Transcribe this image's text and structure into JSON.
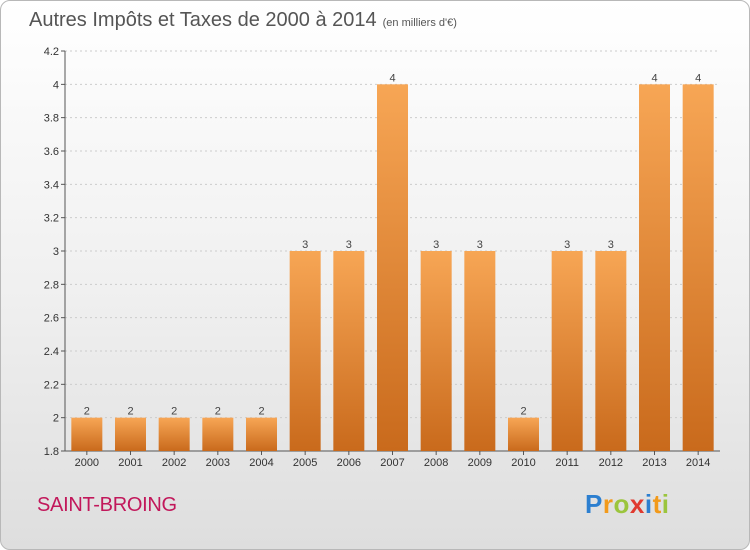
{
  "header": {
    "title": "Autres Impôts et Taxes de 2000 à 2014",
    "subtitle": "(en milliers d'€)"
  },
  "footer": {
    "commune": "SAINT-BROING",
    "logo_letters": [
      {
        "ch": "P",
        "color": "#2c7fd0"
      },
      {
        "ch": "r",
        "color": "#f29a1b"
      },
      {
        "ch": "o",
        "color": "#9bc53d"
      },
      {
        "ch": "x",
        "color": "#e03a2f"
      },
      {
        "ch": "i",
        "color": "#2c7fd0"
      },
      {
        "ch": "t",
        "color": "#f29a1b"
      },
      {
        "ch": "i",
        "color": "#9bc53d"
      }
    ]
  },
  "colors": {
    "bar_light": "#f7a655",
    "bar_dark": "#c96a1c",
    "grid": "#cccccc",
    "title_text": "#555555",
    "commune_text": "#c2185b"
  },
  "chart_data": {
    "type": "bar",
    "title": "Autres Impôts et Taxes de 2000 à 2014",
    "subtitle": "(en milliers d'€)",
    "xlabel": "",
    "ylabel": "",
    "categories": [
      "2000",
      "2001",
      "2002",
      "2003",
      "2004",
      "2005",
      "2006",
      "2007",
      "2008",
      "2009",
      "2010",
      "2011",
      "2012",
      "2013",
      "2014"
    ],
    "values": [
      2,
      2,
      2,
      2,
      2,
      3,
      3,
      4,
      3,
      3,
      2,
      3,
      3,
      4,
      4
    ],
    "value_labels": [
      "2",
      "2",
      "2",
      "2",
      "2",
      "3",
      "3",
      "4",
      "3",
      "3",
      "2",
      "3",
      "3",
      "4",
      "4"
    ],
    "ylim": [
      1.8,
      4.2
    ],
    "yticks": [
      1.8,
      2,
      2.2,
      2.4,
      2.6,
      2.8,
      3,
      3.2,
      3.4,
      3.6,
      3.8,
      4,
      4.2
    ],
    "ytick_labels": [
      "1.8",
      "2",
      "2.2",
      "2.4",
      "2.6",
      "2.8",
      "3",
      "3.2",
      "3.4",
      "3.6",
      "3.8",
      "4",
      "4.2"
    ],
    "grid": true,
    "legend": "none"
  }
}
